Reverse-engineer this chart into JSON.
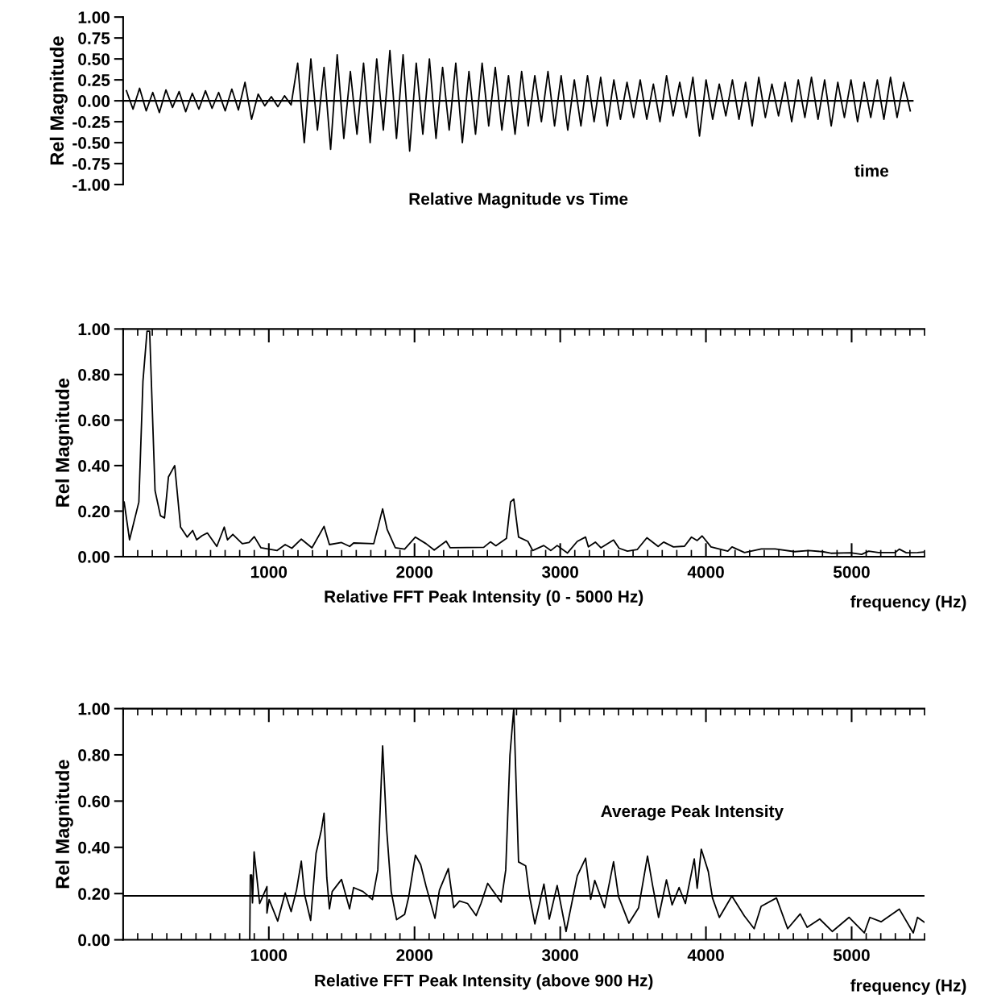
{
  "chart_data": [
    {
      "type": "line",
      "title": "Relative Magnitude vs Time",
      "xlabel": "time",
      "ylabel": "Rel Magnitude",
      "categories": [
        null,
        null,
        null,
        null,
        null,
        null,
        null,
        null,
        null,
        null,
        null,
        null,
        null,
        null,
        null,
        null,
        null,
        null,
        null,
        null,
        null,
        null,
        null,
        null,
        null,
        null,
        null,
        null,
        null,
        null,
        null,
        null,
        null,
        null,
        null,
        null,
        null,
        null,
        null,
        null,
        null,
        null,
        null,
        null,
        null,
        null,
        null,
        null,
        null,
        null,
        null,
        null,
        null,
        null,
        null,
        null,
        null,
        null,
        null,
        null,
        null,
        null,
        null,
        null,
        null,
        null,
        null,
        null,
        null,
        null,
        null,
        null,
        null,
        null,
        null,
        null,
        null,
        null,
        null,
        null,
        null,
        null,
        null,
        null,
        null,
        null,
        null,
        null,
        null,
        null,
        null,
        null,
        null,
        null,
        null,
        null,
        null,
        null,
        null,
        null,
        null,
        null,
        null,
        null,
        null,
        null,
        null,
        null,
        null,
        null,
        null,
        null,
        null,
        null,
        null,
        null,
        null,
        null,
        null,
        null
      ],
      "series": [
        {
          "color": "#000000",
          "values": [
            0.12,
            -0.1,
            0.15,
            -0.12,
            0.1,
            -0.14,
            0.13,
            -0.08,
            0.11,
            -0.13,
            0.09,
            -0.1,
            0.12,
            -0.09,
            0.1,
            -0.12,
            0.14,
            -0.11,
            0.22,
            -0.22,
            0.08,
            -0.06,
            0.05,
            -0.07,
            0.06,
            -0.05,
            0.45,
            -0.5,
            0.5,
            -0.35,
            0.4,
            -0.58,
            0.55,
            -0.45,
            0.35,
            -0.4,
            0.45,
            -0.5,
            0.5,
            -0.35,
            0.6,
            -0.45,
            0.55,
            -0.6,
            0.45,
            -0.4,
            0.5,
            -0.45,
            0.4,
            -0.35,
            0.45,
            -0.5,
            0.35,
            -0.4,
            0.45,
            -0.3,
            0.4,
            -0.35,
            0.3,
            -0.4,
            0.35,
            -0.3,
            0.3,
            -0.25,
            0.35,
            -0.3,
            0.3,
            -0.35,
            0.25,
            -0.3,
            0.3,
            -0.25,
            0.28,
            -0.3,
            0.25,
            -0.22,
            0.22,
            -0.2,
            0.25,
            -0.22,
            0.2,
            -0.25,
            0.3,
            -0.18,
            0.22,
            -0.2,
            0.28,
            -0.42,
            0.25,
            -0.22,
            0.2,
            -0.18,
            0.25,
            -0.22,
            0.22,
            -0.3,
            0.28,
            -0.2,
            0.2,
            -0.18,
            0.22,
            -0.25,
            0.25,
            -0.2,
            0.28,
            -0.22,
            0.25,
            -0.3,
            0.22,
            -0.2,
            0.25,
            -0.25,
            0.22,
            -0.2,
            0.25,
            -0.22,
            0.28,
            -0.2,
            0.22,
            -0.12
          ]
        }
      ],
      "ylim": [
        -1.0,
        1.0
      ],
      "yticks": [
        {
          "value": 1.0,
          "label": "1.00"
        },
        {
          "value": 0.75,
          "label": "0.75"
        },
        {
          "value": 0.5,
          "label": "0.50"
        },
        {
          "value": 0.25,
          "label": "0.25"
        },
        {
          "value": 0.0,
          "label": "0.00"
        },
        {
          "value": -0.25,
          "label": "-0.25"
        },
        {
          "value": -0.5,
          "label": "-0.50"
        },
        {
          "value": -0.75,
          "label": "-0.75"
        },
        {
          "value": -1.0,
          "label": "-1.00"
        }
      ],
      "ref_lines": [
        {
          "axis": "y",
          "value": 0.0,
          "color": "#000000"
        }
      ],
      "grid": false,
      "legend": false,
      "marker": "none",
      "line_style": "solid"
    },
    {
      "type": "line",
      "title": "Relative FFT Peak Intensity (0 - 5000 Hz)",
      "xlabel": "frequency (Hz)",
      "ylabel": "Rel Magnitude",
      "series": [
        {
          "color": "#000000",
          "x": [
            7,
            44,
            108,
            136,
            164,
            182,
            219,
            256,
            284,
            311,
            354,
            394,
            440,
            477,
            505,
            541,
            578,
            643,
            694,
            716,
            753,
            818,
            864,
            900,
            946,
            1057,
            1112,
            1158,
            1223,
            1296,
            1379,
            1416,
            1499,
            1555,
            1582,
            1720,
            1781,
            1812,
            1868,
            1932,
            2006,
            2079,
            2135,
            2217,
            2245,
            2475,
            2521,
            2558,
            2631,
            2659,
            2681,
            2714,
            2778,
            2811,
            2887,
            2935,
            2979,
            3050,
            3117,
            3174,
            3193,
            3241,
            3279,
            3366,
            3404,
            3461,
            3528,
            3595,
            3672,
            3710,
            3777,
            3853,
            3901,
            3940,
            3974,
            4035,
            4150,
            4179,
            4265,
            4380,
            4475,
            4609,
            4705,
            4800,
            4858,
            4992,
            5069,
            5117,
            5184,
            5299,
            5327,
            5375,
            5452,
            5500
          ],
          "values": [
            0.24,
            0.074,
            0.24,
            0.77,
            0.99,
            0.99,
            0.29,
            0.18,
            0.17,
            0.35,
            0.4,
            0.13,
            0.086,
            0.115,
            0.074,
            0.092,
            0.104,
            0.045,
            0.13,
            0.074,
            0.098,
            0.057,
            0.062,
            0.088,
            0.039,
            0.027,
            0.053,
            0.037,
            0.077,
            0.039,
            0.133,
            0.053,
            0.062,
            0.045,
            0.06,
            0.057,
            0.21,
            0.12,
            0.039,
            0.033,
            0.086,
            0.057,
            0.029,
            0.068,
            0.039,
            0.041,
            0.065,
            0.048,
            0.08,
            0.24,
            0.253,
            0.086,
            0.067,
            0.027,
            0.049,
            0.027,
            0.049,
            0.016,
            0.067,
            0.086,
            0.043,
            0.064,
            0.039,
            0.073,
            0.037,
            0.024,
            0.031,
            0.083,
            0.045,
            0.064,
            0.043,
            0.046,
            0.086,
            0.071,
            0.091,
            0.043,
            0.024,
            0.043,
            0.018,
            0.034,
            0.034,
            0.022,
            0.027,
            0.022,
            0.015,
            0.017,
            0.01,
            0.024,
            0.018,
            0.018,
            0.033,
            0.017,
            0.018,
            0.021
          ]
        }
      ],
      "xlim": [
        0,
        5500
      ],
      "xticks": [
        1000,
        2000,
        3000,
        4000,
        5000
      ],
      "ylim": [
        0.0,
        1.0
      ],
      "yticks": [
        {
          "value": 0.0,
          "label": "0.00"
        },
        {
          "value": 0.2,
          "label": "0.20"
        },
        {
          "value": 0.4,
          "label": "0.40"
        },
        {
          "value": 0.6,
          "label": "0.60"
        },
        {
          "value": 0.8,
          "label": "0.80"
        },
        {
          "value": 1.0,
          "label": "1.00"
        }
      ],
      "grid": false,
      "legend": false,
      "marker": "none",
      "line_style": "solid"
    },
    {
      "type": "line",
      "title": "Relative FFT Peak Intensity (above 900 Hz)",
      "xlabel": "frequency (Hz)",
      "ylabel": "Rel Magnitude",
      "series": [
        {
          "color": "#000000",
          "x": [
            869,
            873,
            882,
            888,
            899,
            937,
            987,
            987,
            1002,
            1061,
            1112,
            1153,
            1190,
            1223,
            1245,
            1287,
            1324,
            1361,
            1379,
            1398,
            1416,
            1435,
            1499,
            1554,
            1582,
            1646,
            1711,
            1748,
            1781,
            1809,
            1840,
            1877,
            1932,
            1960,
            2006,
            2042,
            2079,
            2140,
            2171,
            2232,
            2269,
            2309,
            2364,
            2423,
            2456,
            2502,
            2548,
            2594,
            2626,
            2655,
            2681,
            2714,
            2763,
            2792,
            2826,
            2888,
            2925,
            2979,
            3040,
            3117,
            3174,
            3209,
            3237,
            3304,
            3366,
            3400,
            3471,
            3538,
            3599,
            3634,
            3675,
            3729,
            3768,
            3816,
            3859,
            3920,
            3940,
            3968,
            4016,
            4045,
            4092,
            4178,
            4264,
            4331,
            4379,
            4484,
            4561,
            4647,
            4695,
            4781,
            4867,
            4982,
            5087,
            5125,
            5202,
            5327,
            5423,
            5452,
            5500
          ],
          "values": [
            0.0,
            0.28,
            0.28,
            0.16,
            0.38,
            0.157,
            0.23,
            0.116,
            0.174,
            0.081,
            0.203,
            0.122,
            0.215,
            0.34,
            0.197,
            0.084,
            0.374,
            0.476,
            0.548,
            0.267,
            0.134,
            0.209,
            0.261,
            0.134,
            0.226,
            0.209,
            0.174,
            0.302,
            0.839,
            0.476,
            0.209,
            0.087,
            0.11,
            0.186,
            0.366,
            0.325,
            0.232,
            0.093,
            0.215,
            0.308,
            0.139,
            0.168,
            0.157,
            0.105,
            0.157,
            0.244,
            0.203,
            0.163,
            0.302,
            0.8,
            1.0,
            0.337,
            0.32,
            0.18,
            0.069,
            0.241,
            0.09,
            0.235,
            0.036,
            0.277,
            0.353,
            0.175,
            0.257,
            0.139,
            0.338,
            0.187,
            0.072,
            0.139,
            0.362,
            0.235,
            0.097,
            0.259,
            0.151,
            0.226,
            0.157,
            0.35,
            0.223,
            0.392,
            0.296,
            0.181,
            0.097,
            0.189,
            0.103,
            0.048,
            0.145,
            0.181,
            0.048,
            0.112,
            0.054,
            0.09,
            0.036,
            0.097,
            0.03,
            0.097,
            0.078,
            0.133,
            0.03,
            0.097,
            0.076
          ]
        }
      ],
      "ref_lines": [
        {
          "axis": "y",
          "value": 0.19,
          "label": "Average Peak Intensity",
          "color": "#000000"
        }
      ],
      "xlim": [
        0,
        5500
      ],
      "xticks": [
        1000,
        2000,
        3000,
        4000,
        5000
      ],
      "ylim": [
        0.0,
        1.0
      ],
      "yticks": [
        {
          "value": 0.0,
          "label": "0.00"
        },
        {
          "value": 0.2,
          "label": "0.20"
        },
        {
          "value": 0.4,
          "label": "0.40"
        },
        {
          "value": 0.6,
          "label": "0.60"
        },
        {
          "value": 0.8,
          "label": "0.80"
        },
        {
          "value": 1.0,
          "label": "1.00"
        }
      ],
      "grid": false,
      "legend": false,
      "marker": "none",
      "line_style": "solid"
    }
  ]
}
